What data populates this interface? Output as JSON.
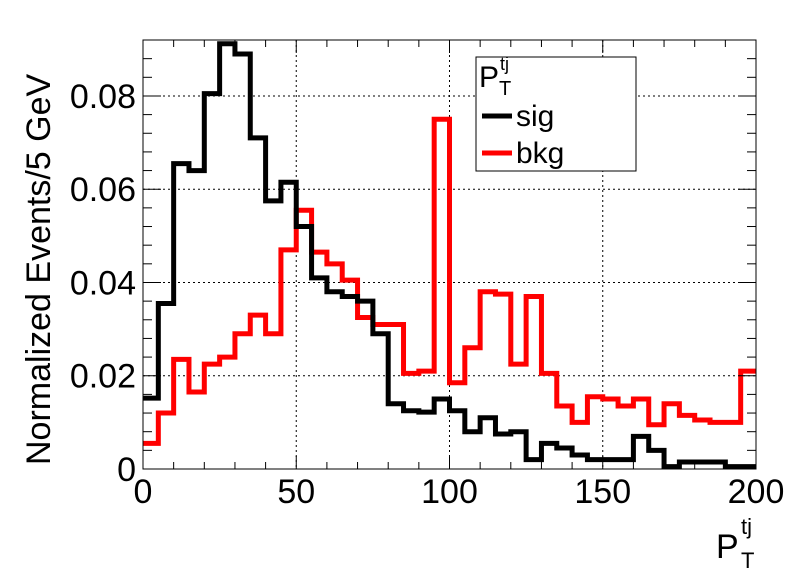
{
  "chart_data": {
    "type": "line",
    "step": true,
    "xlabel": "P",
    "xlabel_sub": "T",
    "xlabel_sup": "tj",
    "ylabel": "Normalized Events/5 GeV",
    "xlim": [
      0,
      200
    ],
    "ylim": [
      0,
      0.092
    ],
    "x_ticks": [
      0,
      50,
      100,
      150,
      200
    ],
    "x_tick_labels": [
      "0",
      "50",
      "100",
      "150",
      "200"
    ],
    "y_ticks": [
      0,
      0.02,
      0.04,
      0.06,
      0.08
    ],
    "y_tick_labels": [
      "0",
      "0.02",
      "0.04",
      "0.06",
      "0.08"
    ],
    "grid": true,
    "legend_position": "top-right",
    "legend_title": "P",
    "legend_title_sub": "T",
    "legend_title_sup": "tj",
    "bin_edges": [
      0,
      5,
      10,
      15,
      20,
      25,
      30,
      35,
      40,
      45,
      50,
      55,
      60,
      65,
      70,
      75,
      80,
      85,
      90,
      95,
      100,
      105,
      110,
      115,
      120,
      125,
      130,
      135,
      140,
      145,
      150,
      155,
      160,
      165,
      170,
      175,
      180,
      185,
      190,
      195,
      200
    ],
    "series": [
      {
        "name": "sig",
        "color": "#000000",
        "values": [
          0.0152,
          0.0355,
          0.0655,
          0.064,
          0.0805,
          0.0912,
          0.089,
          0.071,
          0.0575,
          0.0615,
          0.052,
          0.041,
          0.038,
          0.037,
          0.036,
          0.029,
          0.014,
          0.0125,
          0.0122,
          0.015,
          0.0125,
          0.008,
          0.011,
          0.0075,
          0.008,
          0.002,
          0.0055,
          0.0045,
          0.003,
          0.002,
          0.002,
          0.002,
          0.007,
          0.004,
          0.0005,
          0.0015,
          0.0015,
          0.0015,
          0.0005,
          0.0005
        ]
      },
      {
        "name": "bkg",
        "color": "#ff0000",
        "values": [
          0.0055,
          0.012,
          0.0235,
          0.0165,
          0.0225,
          0.024,
          0.029,
          0.033,
          0.029,
          0.047,
          0.0555,
          0.0465,
          0.044,
          0.0405,
          0.0325,
          0.031,
          0.031,
          0.0205,
          0.021,
          0.075,
          0.0185,
          0.026,
          0.038,
          0.0375,
          0.0225,
          0.037,
          0.0205,
          0.0135,
          0.01,
          0.0155,
          0.015,
          0.0135,
          0.015,
          0.0095,
          0.014,
          0.0115,
          0.0105,
          0.01,
          0.01,
          0.021
        ]
      }
    ]
  }
}
